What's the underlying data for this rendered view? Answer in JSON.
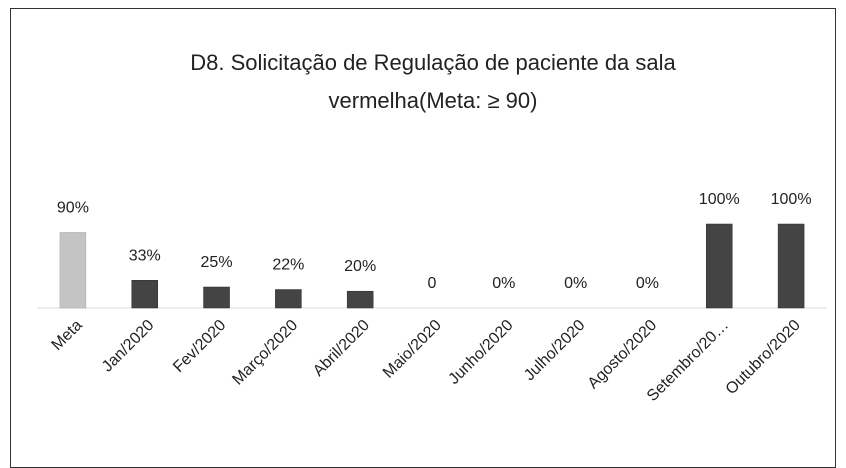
{
  "chart_data": {
    "type": "bar",
    "title": "D8. Solicitação de Regulação de paciente da sala vermelha(Meta: ≥ 90)",
    "categories": [
      "Meta",
      "Jan/2020",
      "Fev/2020",
      "Março/2020",
      "Abril/2020",
      "Maio/2020",
      "Junho/2020",
      "Julho/2020",
      "Agosto/2020",
      "Setembro/20…",
      "Outubro/2020"
    ],
    "values": [
      90,
      33,
      25,
      22,
      20,
      0,
      0,
      0,
      0,
      100,
      100
    ],
    "value_labels": [
      "90%",
      "33%",
      "25%",
      "22%",
      "20%",
      "0",
      "0%",
      "0%",
      "0%",
      "100%",
      "100%"
    ],
    "colors": [
      "#c4c4c4",
      "#444444",
      "#444444",
      "#444444",
      "#444444",
      "#444444",
      "#444444",
      "#444444",
      "#444444",
      "#444444",
      "#444444"
    ],
    "ylim": [
      0,
      100
    ]
  }
}
